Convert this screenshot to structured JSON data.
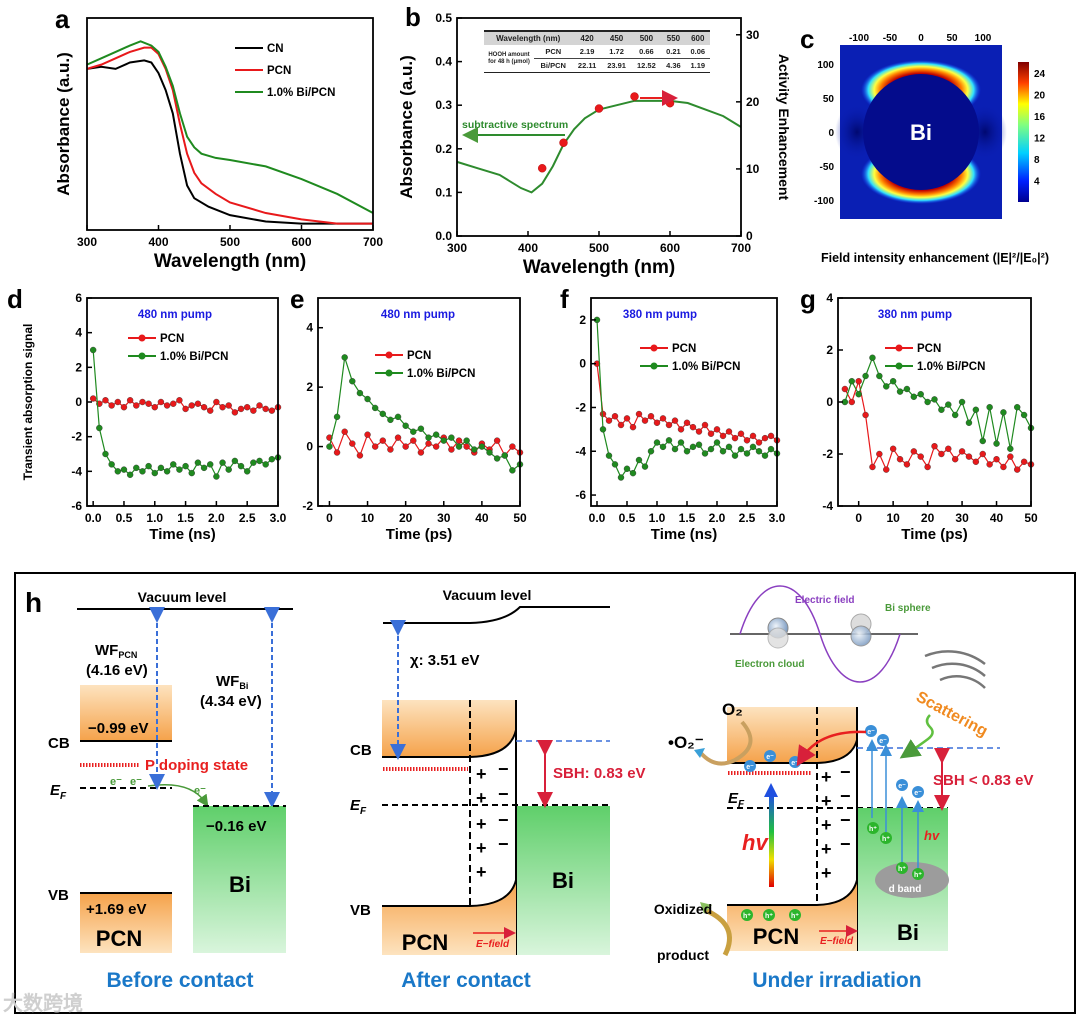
{
  "figure": {
    "panel_h_label": "h",
    "watermark": "大数跨境"
  },
  "chart_data": [
    {
      "panel": "a",
      "panel_label": "a",
      "type": "line",
      "xlabel": "Wavelength (nm)",
      "ylabel": "Absorbance (a.u.)",
      "xlim": [
        300,
        700
      ],
      "ylim": [
        0,
        1
      ],
      "xticks": [
        300,
        400,
        500,
        600,
        700
      ],
      "yticks": [],
      "legend_position": "top-right",
      "series": [
        {
          "name": "CN",
          "color": "#000000",
          "x": [
            300,
            320,
            340,
            360,
            380,
            390,
            400,
            410,
            420,
            430,
            440,
            450,
            470,
            500,
            550,
            600,
            650,
            700
          ],
          "y": [
            0.76,
            0.77,
            0.76,
            0.79,
            0.8,
            0.79,
            0.74,
            0.66,
            0.55,
            0.36,
            0.21,
            0.15,
            0.11,
            0.07,
            0.04,
            0.03,
            0.03,
            0.03
          ]
        },
        {
          "name": "PCN",
          "color": "#e8191b",
          "x": [
            300,
            320,
            340,
            360,
            380,
            390,
            400,
            410,
            420,
            430,
            440,
            450,
            460,
            480,
            500,
            550,
            600,
            650,
            700
          ],
          "y": [
            0.76,
            0.78,
            0.81,
            0.84,
            0.86,
            0.86,
            0.83,
            0.76,
            0.66,
            0.5,
            0.36,
            0.27,
            0.22,
            0.17,
            0.13,
            0.08,
            0.05,
            0.03,
            0.03
          ]
        },
        {
          "name": "1.0% Bi/PCN",
          "color": "#1f8a1f",
          "x": [
            300,
            320,
            340,
            360,
            375,
            390,
            400,
            410,
            420,
            430,
            440,
            450,
            460,
            480,
            500,
            550,
            600,
            650,
            700
          ],
          "y": [
            0.78,
            0.81,
            0.84,
            0.87,
            0.89,
            0.87,
            0.84,
            0.77,
            0.68,
            0.55,
            0.44,
            0.39,
            0.36,
            0.34,
            0.33,
            0.3,
            0.24,
            0.17,
            0.08
          ]
        }
      ]
    },
    {
      "panel": "b",
      "panel_label": "b",
      "type": "line",
      "xlabel": "Wavelength (nm)",
      "ylabel": "Absorbance (a.u.)",
      "y2label": "Activity Enhancement",
      "xlim": [
        300,
        700
      ],
      "ylim": [
        0,
        0.5
      ],
      "y2lim": [
        0,
        32.5
      ],
      "xticks": [
        300,
        400,
        500,
        600,
        700
      ],
      "yticks": [
        0.0,
        0.1,
        0.2,
        0.3,
        0.4,
        0.5
      ],
      "y2ticks": [
        0,
        10,
        20,
        30
      ],
      "series": [
        {
          "name": "Absorbance (subtractive spectrum)",
          "color": "#2e8b2e",
          "axis": "y",
          "x": [
            300,
            330,
            360,
            390,
            405,
            420,
            435,
            450,
            465,
            480,
            500,
            525,
            550,
            575,
            600,
            625,
            650,
            675,
            700
          ],
          "y": [
            0.17,
            0.155,
            0.14,
            0.11,
            0.1,
            0.12,
            0.16,
            0.21,
            0.245,
            0.27,
            0.29,
            0.3,
            0.31,
            0.31,
            0.31,
            0.305,
            0.29,
            0.275,
            0.25
          ]
        },
        {
          "name": "Activity enhancement",
          "color": "#e8191b",
          "axis": "y2",
          "markers": true,
          "line": false,
          "x": [
            420,
            450,
            500,
            550,
            600
          ],
          "y": [
            10.1,
            13.9,
            19.0,
            20.8,
            19.8
          ]
        }
      ],
      "annotations": {
        "subtractive": "subtractive spectrum"
      },
      "inset_table": {
        "header": [
          "Wavelength (nm)",
          "420",
          "450",
          "500",
          "550",
          "600"
        ],
        "row_head": "HOOH amount for 48 h (μmol)",
        "rows": [
          {
            "label": "PCN",
            "values": [
              "2.19",
              "1.72",
              "0.66",
              "0.21",
              "0.06"
            ]
          },
          {
            "label": "Bi/PCN",
            "values": [
              "22.11",
              "23.91",
              "12.52",
              "4.36",
              "1.19"
            ]
          }
        ]
      }
    },
    {
      "panel": "c",
      "panel_label": "c",
      "type": "heatmap",
      "center_label": "Bi",
      "xticks": [
        -100,
        -50,
        0,
        50,
        100
      ],
      "yticks": [
        100,
        50,
        0,
        -50,
        -100
      ],
      "colorbar_ticks": [
        4,
        8,
        12,
        16,
        20,
        24
      ],
      "colorbar_range": [
        0,
        26
      ],
      "caption": "Field intensity enhancement (|E|²/|E₀|²)"
    },
    {
      "panel": "d",
      "panel_label": "d",
      "type": "scatter",
      "xlabel": "Time (ns)",
      "ylabel": "Transient absorption signal",
      "annotation": "480 nm pump",
      "xlim": [
        -0.1,
        3.0
      ],
      "ylim": [
        -6,
        6
      ],
      "xticks": [
        0.0,
        0.5,
        1.0,
        1.5,
        2.0,
        2.5,
        3.0
      ],
      "yticks": [
        6,
        4,
        2,
        0,
        -2,
        -4,
        -6
      ],
      "x_start": 0,
      "x_step": 0.1,
      "series": [
        {
          "name": "PCN",
          "color": "#e8191b",
          "y": [
            0.2,
            -0.1,
            0.1,
            -0.2,
            0,
            -0.3,
            0.1,
            -0.2,
            0,
            -0.1,
            -0.3,
            0,
            -0.2,
            -0.1,
            0.1,
            -0.4,
            -0.2,
            -0.1,
            -0.3,
            -0.5,
            0,
            -0.3,
            -0.2,
            -0.6,
            -0.4,
            -0.3,
            -0.5,
            -0.2,
            -0.4,
            -0.5,
            -0.3
          ]
        },
        {
          "name": "1.0% Bi/PCN",
          "color": "#1f8a1f",
          "y": [
            3,
            -1.5,
            -3,
            -3.6,
            -4,
            -3.9,
            -4.2,
            -3.8,
            -4,
            -3.7,
            -4.1,
            -3.8,
            -4,
            -3.6,
            -3.9,
            -3.7,
            -4.1,
            -3.5,
            -3.8,
            -3.6,
            -4.3,
            -3.5,
            -3.9,
            -3.4,
            -3.7,
            -4,
            -3.5,
            -3.4,
            -3.6,
            -3.3,
            -3.2
          ]
        }
      ]
    },
    {
      "panel": "e",
      "panel_label": "e",
      "type": "scatter",
      "xlabel": "Time (ps)",
      "annotation": "480 nm pump",
      "xlim": [
        -3,
        50
      ],
      "ylim": [
        -2,
        5
      ],
      "xticks": [
        0,
        10,
        20,
        30,
        40,
        50
      ],
      "yticks": [
        4,
        2,
        0,
        -2
      ],
      "x_start": 0,
      "x_step": 2,
      "series": [
        {
          "name": "PCN",
          "color": "#e8191b",
          "y": [
            0.3,
            -0.2,
            0.5,
            0.1,
            -0.3,
            0.4,
            0,
            0.2,
            -0.1,
            0.3,
            0,
            0.2,
            -0.2,
            0.1,
            0,
            0.3,
            -0.1,
            0.2,
            0,
            -0.2,
            0.1,
            -0.1,
            0.2,
            -0.3,
            0,
            -0.2
          ]
        },
        {
          "name": "1.0% Bi/PCN",
          "color": "#1f8a1f",
          "y": [
            0,
            1,
            3,
            2.2,
            1.8,
            1.6,
            1.3,
            1.1,
            0.9,
            1,
            0.7,
            0.5,
            0.6,
            0.3,
            0.4,
            0.2,
            0.3,
            0,
            0.2,
            -0.1,
            0,
            -0.2,
            -0.4,
            -0.3,
            -0.8,
            -0.6
          ]
        }
      ]
    },
    {
      "panel": "f",
      "panel_label": "f",
      "type": "scatter",
      "xlabel": "Time (ns)",
      "annotation": "380 nm pump",
      "xlim": [
        -0.1,
        3.0
      ],
      "ylim": [
        -6.5,
        3
      ],
      "xticks": [
        0.0,
        0.5,
        1.0,
        1.5,
        2.0,
        2.5,
        3.0
      ],
      "yticks": [
        2,
        0,
        -2,
        -4,
        -6
      ],
      "x_start": 0,
      "x_step": 0.1,
      "series": [
        {
          "name": "PCN",
          "color": "#e8191b",
          "y": [
            0,
            -2.3,
            -2.6,
            -2.4,
            -2.8,
            -2.5,
            -2.9,
            -2.3,
            -2.6,
            -2.4,
            -2.7,
            -2.5,
            -2.8,
            -2.6,
            -3,
            -2.7,
            -2.9,
            -3.1,
            -2.8,
            -3.2,
            -3,
            -3.3,
            -3.1,
            -3.4,
            -3.2,
            -3.5,
            -3.3,
            -3.6,
            -3.4,
            -3.3,
            -3.5
          ]
        },
        {
          "name": "1.0% Bi/PCN",
          "color": "#1f8a1f",
          "y": [
            2,
            -3,
            -4.2,
            -4.6,
            -5.2,
            -4.8,
            -5,
            -4.4,
            -4.7,
            -4,
            -3.6,
            -3.8,
            -3.5,
            -3.9,
            -3.6,
            -4,
            -3.8,
            -3.7,
            -4.1,
            -3.9,
            -3.6,
            -4,
            -3.8,
            -4.2,
            -3.9,
            -4.1,
            -3.8,
            -4,
            -4.2,
            -3.9,
            -4.1
          ]
        }
      ]
    },
    {
      "panel": "g",
      "panel_label": "g",
      "type": "scatter",
      "xlabel": "Time (ps)",
      "annotation": "380 nm pump",
      "xlim": [
        -6,
        50
      ],
      "ylim": [
        -4,
        4
      ],
      "xticks": [
        0,
        10,
        20,
        30,
        40,
        50
      ],
      "yticks": [
        4,
        2,
        0,
        -2,
        -4
      ],
      "x_start": -4,
      "x_step": 2,
      "series": [
        {
          "name": "PCN",
          "color": "#e8191b",
          "y": [
            0.5,
            0,
            0.8,
            -0.5,
            -2.5,
            -2,
            -2.6,
            -1.8,
            -2.2,
            -2.4,
            -1.9,
            -2.1,
            -2.5,
            -1.7,
            -2,
            -1.8,
            -2.2,
            -1.9,
            -2.1,
            -2.3,
            -2,
            -2.4,
            -2.2,
            -2.5,
            -2.1,
            -2.6,
            -2.3,
            -2.4
          ]
        },
        {
          "name": "1.0% Bi/PCN",
          "color": "#1f8a1f",
          "y": [
            0,
            0.8,
            0.3,
            1,
            1.7,
            1,
            0.6,
            0.8,
            0.4,
            0.5,
            0.2,
            0.3,
            0,
            0.1,
            -0.3,
            -0.1,
            -0.5,
            0,
            -0.8,
            -0.3,
            -1.5,
            -0.2,
            -1.6,
            -0.4,
            -1.8,
            -0.2,
            -0.5,
            -1
          ]
        }
      ]
    }
  ],
  "diagram": {
    "before": {
      "title": "Before contact",
      "vacuum": "Vacuum level",
      "wf_pcn": "WF",
      "wf_pcn_sub": "PCN",
      "wf_pcn_val": "(4.16 eV)",
      "wf_bi": "WF",
      "wf_bi_sub": "Bi",
      "wf_bi_val": "(4.34 eV)",
      "cb": "CB",
      "vb": "VB",
      "ef": "E",
      "ef_sub": "F",
      "cb_val": "−0.99 eV",
      "vb_val": "+1.69 eV",
      "bi_val": "−0.16 eV",
      "doping": "P doping state",
      "electron": "e⁻",
      "pcn": "PCN",
      "bi": "Bi"
    },
    "after": {
      "title": "After contact",
      "vacuum": "Vacuum level",
      "chi": "χ:  3.51 eV",
      "cb": "CB",
      "vb": "VB",
      "ef": "E",
      "ef_sub": "F",
      "sbh": "SBH: 0.83 eV",
      "pcn": "PCN",
      "bi": "Bi",
      "efield": "E−field",
      "plus": "+",
      "minus": "−"
    },
    "irradiation": {
      "title": "Under irradiation",
      "electric_field": "Electric field",
      "bi_sphere": "Bi sphere",
      "electron_cloud": "Electron cloud",
      "o2": "O₂",
      "superoxide": "•O₂⁻",
      "ef": "E",
      "ef_sub": "F",
      "hv": "hv",
      "sbh": "SBH < 0.83 eV",
      "scattering": "Scattering",
      "d_band": "d band",
      "pcn": "PCN",
      "bi": "Bi",
      "efield": "E−field",
      "oxidized": "Oxidized",
      "product": "product",
      "electron": "e⁻",
      "hole": "h⁺",
      "plus": "+",
      "minus": "−"
    }
  }
}
